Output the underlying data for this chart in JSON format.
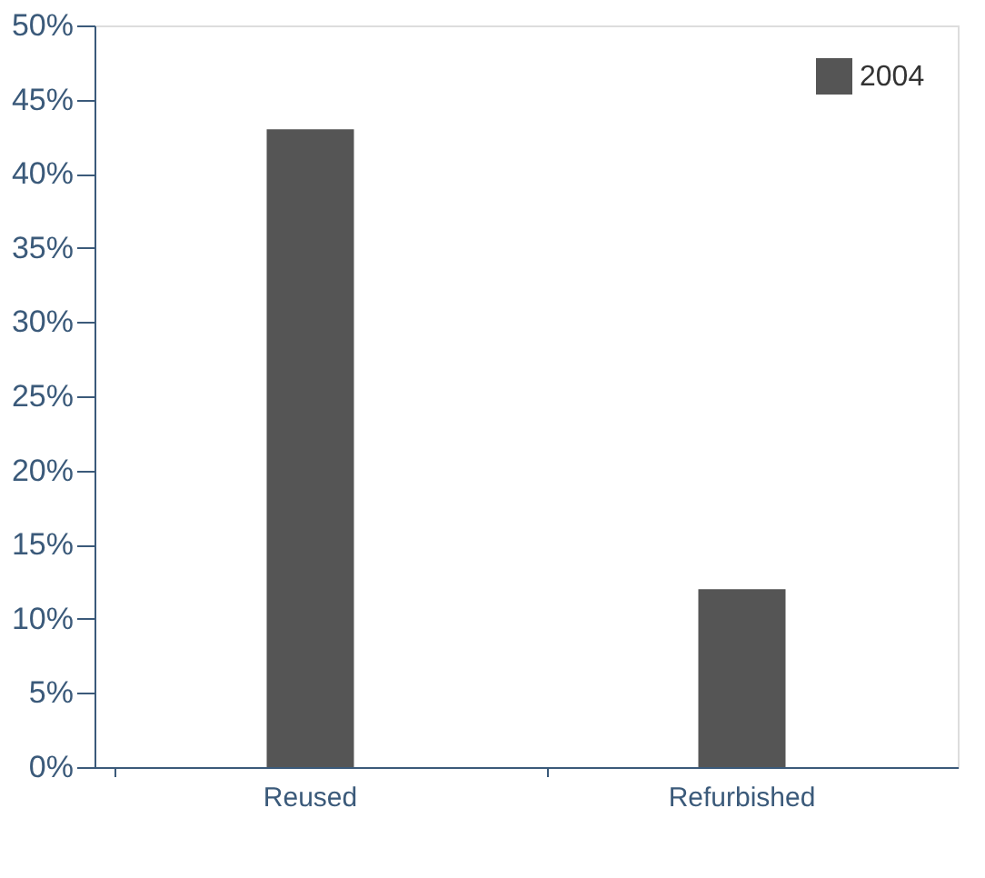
{
  "chart_data": {
    "type": "bar",
    "categories": [
      "Reused",
      "Refurbished"
    ],
    "series": [
      {
        "name": "2004",
        "color": "#555555",
        "values": [
          43,
          12
        ]
      }
    ],
    "ylim": [
      0,
      50
    ],
    "yticks": [
      {
        "value": 0,
        "label": "0%"
      },
      {
        "value": 5,
        "label": "5%"
      },
      {
        "value": 10,
        "label": "10%"
      },
      {
        "value": 15,
        "label": "15%"
      },
      {
        "value": 20,
        "label": "20%"
      },
      {
        "value": 25,
        "label": "25%"
      },
      {
        "value": 30,
        "label": "30%"
      },
      {
        "value": 35,
        "label": "35%"
      },
      {
        "value": 40,
        "label": "40%"
      },
      {
        "value": 45,
        "label": "45%"
      },
      {
        "value": 50,
        "label": "50%"
      }
    ],
    "grid": false,
    "legend": "top right"
  }
}
